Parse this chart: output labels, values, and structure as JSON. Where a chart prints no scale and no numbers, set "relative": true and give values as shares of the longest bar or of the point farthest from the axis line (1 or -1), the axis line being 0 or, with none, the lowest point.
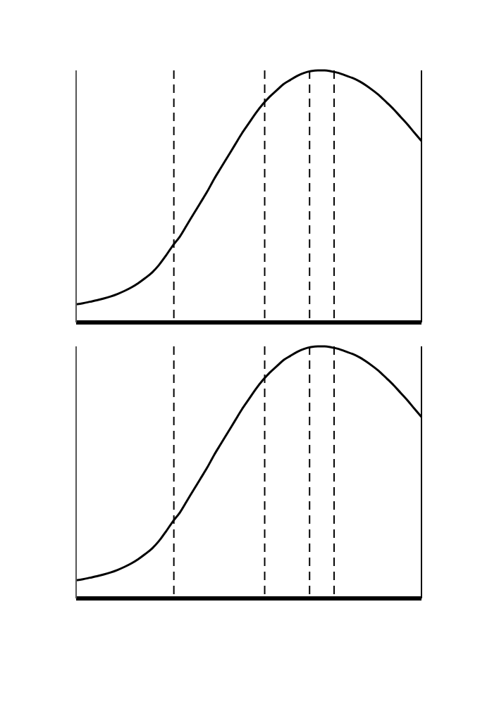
{
  "chart_data": [
    {
      "type": "line",
      "relative": true,
      "categories": [
        null,
        null,
        null,
        null,
        null,
        null,
        null,
        null,
        null,
        null,
        null,
        null,
        null,
        null,
        null,
        null,
        null,
        null,
        null,
        null,
        null,
        null,
        null,
        null,
        null,
        null,
        null,
        null,
        null,
        null,
        null,
        null,
        null,
        null,
        null,
        null,
        null,
        null,
        null,
        null,
        null,
        null,
        null,
        null,
        null,
        null,
        null,
        null,
        null,
        null,
        null
      ],
      "series": [
        {
          "color": "#000000",
          "values": [
            0.072,
            0.076,
            0.082,
            0.088,
            0.095,
            0.103,
            0.113,
            0.125,
            0.139,
            0.156,
            0.176,
            0.198,
            0.228,
            0.265,
            0.305,
            0.34,
            0.385,
            0.43,
            0.475,
            0.52,
            0.57,
            0.615,
            0.66,
            0.705,
            0.75,
            0.79,
            0.83,
            0.865,
            0.895,
            0.92,
            0.945,
            0.962,
            0.978,
            0.99,
            0.997,
            1.0,
            1.0,
            0.996,
            0.99,
            0.98,
            0.97,
            0.957,
            0.94,
            0.92,
            0.898,
            0.872,
            0.845,
            0.815,
            0.785,
            0.752,
            0.72
          ]
        }
      ]
    },
    {
      "type": "line",
      "relative": true,
      "categories": [
        null,
        null,
        null,
        null,
        null,
        null,
        null,
        null,
        null,
        null,
        null,
        null,
        null,
        null,
        null,
        null,
        null,
        null,
        null,
        null,
        null,
        null,
        null,
        null,
        null,
        null,
        null,
        null,
        null,
        null,
        null,
        null,
        null,
        null,
        null,
        null,
        null,
        null,
        null,
        null,
        null,
        null,
        null,
        null,
        null,
        null,
        null,
        null,
        null,
        null,
        null
      ],
      "series": [
        {
          "color": "#000000",
          "values": [
            0.072,
            0.076,
            0.082,
            0.088,
            0.095,
            0.103,
            0.113,
            0.125,
            0.139,
            0.156,
            0.176,
            0.198,
            0.228,
            0.265,
            0.305,
            0.34,
            0.385,
            0.43,
            0.475,
            0.52,
            0.57,
            0.615,
            0.66,
            0.705,
            0.75,
            0.79,
            0.83,
            0.865,
            0.895,
            0.92,
            0.945,
            0.962,
            0.978,
            0.99,
            0.997,
            1.0,
            1.0,
            0.996,
            0.99,
            0.98,
            0.97,
            0.957,
            0.94,
            0.92,
            0.898,
            0.872,
            0.845,
            0.815,
            0.785,
            0.752,
            0.72
          ]
        }
      ]
    }
  ]
}
